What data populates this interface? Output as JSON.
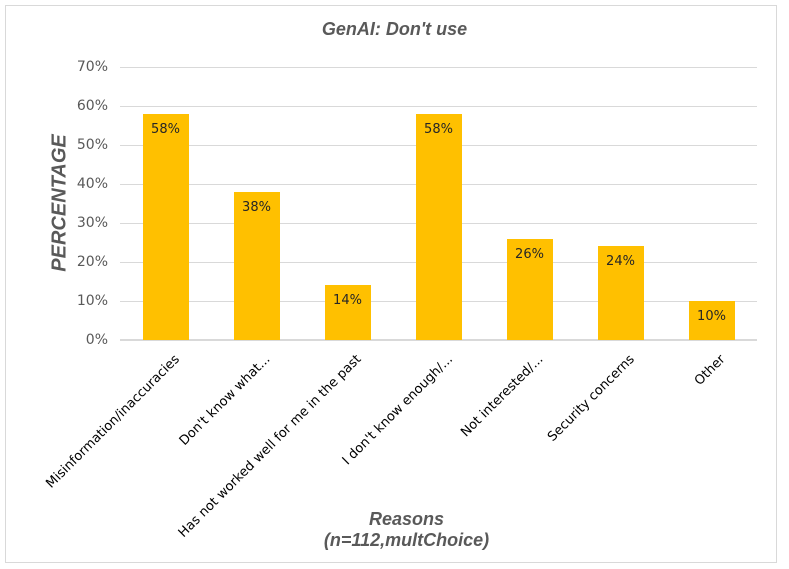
{
  "chart_data": {
    "type": "bar",
    "title": "GenAI: Don't use",
    "xlabel": "Reasons",
    "xlabel_sub": "(n=112,multChoice)",
    "ylabel": "PERCENTAGE",
    "ylim": [
      0,
      70
    ],
    "yticks": [
      "0%",
      "10%",
      "20%",
      "30%",
      "40%",
      "50%",
      "60%",
      "70%"
    ],
    "grid": true,
    "legend": null,
    "bar_color": "#ffc000",
    "categories": [
      "Misinformation/inaccuracies",
      "Don't know what...",
      "Has not worked well for me in the past",
      "I don't know enough/...",
      "Not interested/...",
      "Security concerns",
      "Other"
    ],
    "values": [
      58,
      38,
      14,
      58,
      26,
      24,
      10
    ],
    "data_labels": [
      "58%",
      "38%",
      "14%",
      "58%",
      "26%",
      "24%",
      "10%"
    ]
  }
}
